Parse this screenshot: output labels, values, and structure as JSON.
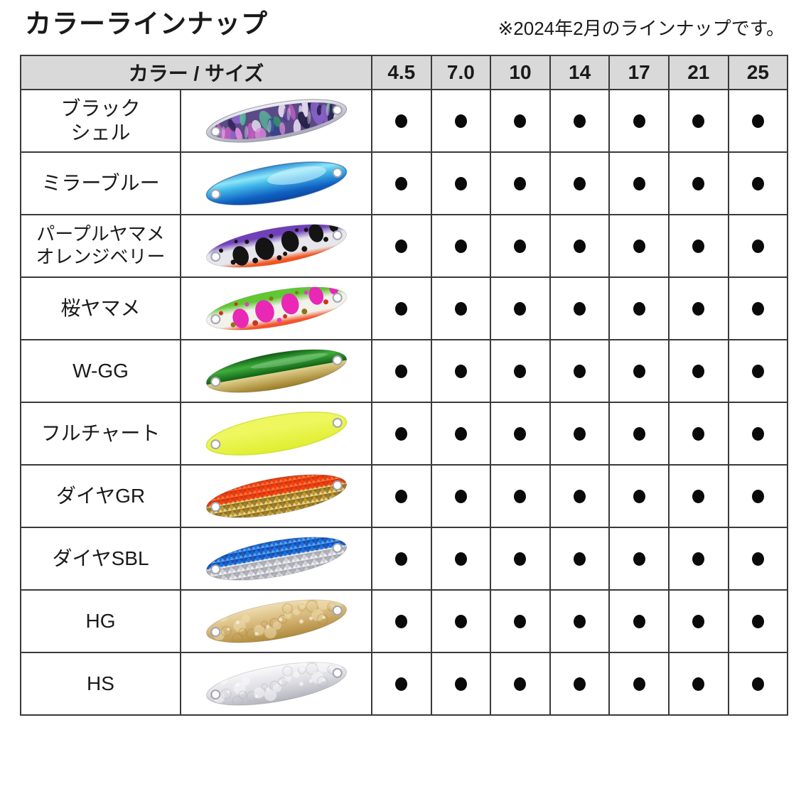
{
  "page": {
    "title": "カラーラインナップ",
    "note": "※2024年2月のラインナップです。"
  },
  "palette": {
    "page_bg": "#ffffff",
    "text": "#1a1a1a",
    "border": "#3a3a3a",
    "header_bg": "#d9d9d9",
    "dot": "#0a0a0a"
  },
  "table": {
    "header": {
      "label": "カラー / サイズ",
      "sizes": [
        "4.5",
        "7.0",
        "10",
        "14",
        "17",
        "21",
        "25"
      ]
    },
    "rows": [
      {
        "id": "black-shell",
        "name_lines": [
          "ブラック",
          "シェル"
        ],
        "lure": {
          "style": "shell",
          "colors": {
            "rim": "#c9cad4",
            "base": "#5a4a86",
            "blobs": [
              "#6d4694",
              "#c05fc0",
              "#2f9c68",
              "#2b3f8e",
              "#e289d8",
              "#25204a",
              "#55c698",
              "#8a62c8",
              "#e8e0f0",
              "#d88ad8"
            ]
          }
        },
        "availability": [
          true,
          true,
          true,
          true,
          true,
          true,
          true
        ]
      },
      {
        "id": "mirror-blue",
        "name_lines": [
          "ミラーブルー"
        ],
        "lure": {
          "style": "mirror",
          "colors": {
            "top": "#2e8fd8",
            "light": "#8ce6f8",
            "mid": "#3fb4e8",
            "deep": "#1161c2",
            "bottom": "#0a47a0",
            "highlight": "#d8f6fd"
          }
        },
        "availability": [
          true,
          true,
          true,
          true,
          true,
          true,
          true
        ]
      },
      {
        "id": "purple-yamame-orange-belly",
        "name_lines": [
          "パープルヤマメ",
          "オレンジベリー"
        ],
        "lure": {
          "style": "yamame",
          "colors": {
            "back": "#7040b8",
            "body": "#e6e6ec",
            "belly": "#f4551e",
            "big_spot": "#141414",
            "small_dots": [
              "#141414"
            ]
          }
        },
        "availability": [
          true,
          true,
          true,
          true,
          true,
          true,
          true
        ]
      },
      {
        "id": "sakura-yamame",
        "name_lines": [
          "桜ヤマメ"
        ],
        "lure": {
          "style": "yamame",
          "colors": {
            "back": "#5fc832",
            "body": "#f2f1ea",
            "belly": "#f4552a",
            "big_spot": "#e928b5",
            "small_dots": [
              "#cc3322",
              "#8a7618",
              "#e040c0"
            ]
          }
        },
        "availability": [
          true,
          true,
          true,
          true,
          true,
          true,
          true
        ]
      },
      {
        "id": "w-gg",
        "name_lines": [
          "W-GG"
        ],
        "lure": {
          "style": "twotone",
          "colors": {
            "top_dark": "#0d5c14",
            "top_light": "#3fae3c",
            "bottom_dark": "#9a7a24",
            "bottom_light": "#eedfa0"
          }
        },
        "availability": [
          true,
          true,
          true,
          true,
          true,
          true,
          true
        ]
      },
      {
        "id": "full-chart",
        "name_lines": [
          "フルチャート"
        ],
        "lure": {
          "style": "solid",
          "colors": {
            "fill_light": "#eef75e",
            "fill": "#dfee2e",
            "edge": "#c9d81c"
          }
        },
        "availability": [
          true,
          true,
          true,
          true,
          true,
          true,
          true
        ]
      },
      {
        "id": "dia-gr",
        "name_lines": [
          "ダイヤGR"
        ],
        "lure": {
          "style": "diamond",
          "colors": {
            "top_base": "#f5410f",
            "top_dark": "#cc2e06",
            "top_light": "#ff7a48",
            "bottom_base": "#c09a34",
            "bottom_dark": "#7c5c10",
            "bottom_light": "#f0e098"
          }
        },
        "availability": [
          true,
          true,
          true,
          true,
          true,
          true,
          true
        ]
      },
      {
        "id": "dia-sbl",
        "name_lines": [
          "ダイヤSBL"
        ],
        "lure": {
          "style": "diamond",
          "colors": {
            "top_base": "#1a72e2",
            "top_dark": "#0b3f9e",
            "top_light": "#66aaf2",
            "bottom_base": "#cfcfd6",
            "bottom_dark": "#9898a2",
            "bottom_light": "#f4f4f8"
          }
        },
        "availability": [
          true,
          true,
          true,
          true,
          true,
          true,
          true
        ]
      },
      {
        "id": "hg",
        "name_lines": [
          "HG"
        ],
        "lure": {
          "style": "hammered",
          "colors": {
            "light": "#f0deb0",
            "base": "#d2b272",
            "dark": "#ae8a3c"
          }
        },
        "availability": [
          true,
          true,
          true,
          true,
          true,
          true,
          true
        ]
      },
      {
        "id": "hs",
        "name_lines": [
          "HS"
        ],
        "lure": {
          "style": "hammered",
          "colors": {
            "light": "#fafafc",
            "base": "#dcdce2",
            "dark": "#b4b4be"
          }
        },
        "availability": [
          true,
          true,
          true,
          true,
          true,
          true,
          true
        ]
      }
    ]
  }
}
